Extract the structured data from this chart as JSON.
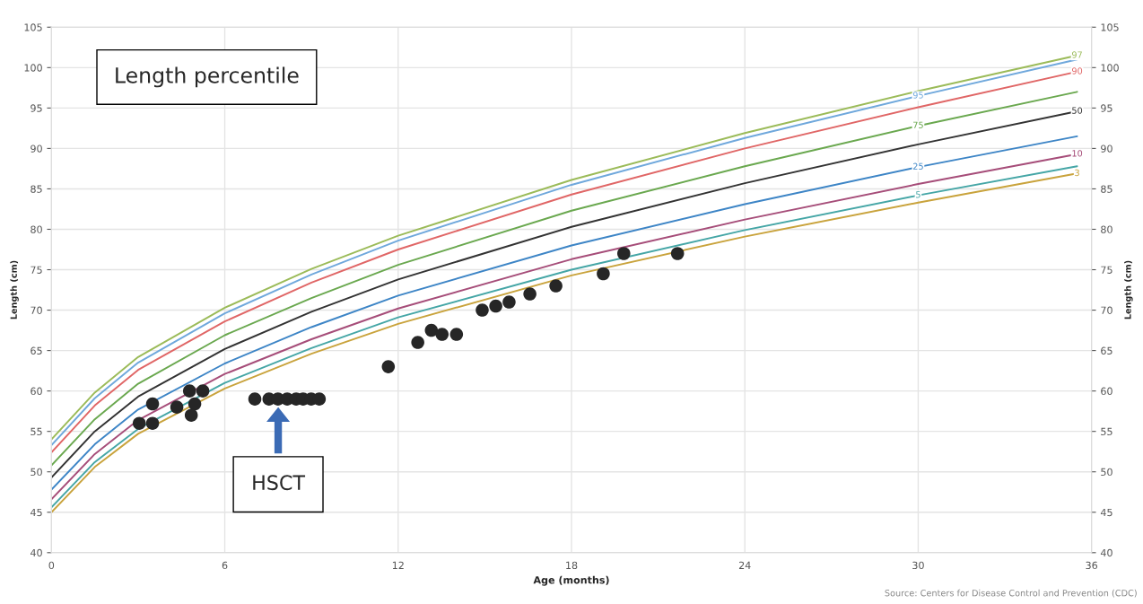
{
  "chart_data": {
    "type": "line",
    "xlabel": "Age (months)",
    "ylabel": "Length (cm)",
    "y2label": "Length (cm)",
    "xlim": [
      0,
      36
    ],
    "xticks": [
      0,
      6,
      12,
      18,
      24,
      30,
      36
    ],
    "ylim": [
      40,
      105
    ],
    "yticks": [
      40,
      45,
      50,
      55,
      60,
      65,
      70,
      75,
      80,
      85,
      90,
      95,
      100,
      105
    ],
    "y2lim": [
      40,
      105
    ],
    "y2ticks": [
      40,
      45,
      50,
      55,
      60,
      65,
      70,
      75,
      80,
      85,
      90,
      95,
      100,
      105
    ],
    "grid": true,
    "marker": "none",
    "line_style": "solid",
    "x": [
      0,
      1.5,
      3,
      6,
      9,
      12,
      18,
      24,
      30,
      35.5
    ],
    "series": [
      {
        "name": "97",
        "color": "#9bbb59",
        "values": [
          54.0,
          59.8,
          64.2,
          70.3,
          75.1,
          79.2,
          86.1,
          91.9,
          97.1,
          101.5
        ]
      },
      {
        "name": "95",
        "color": "#6fa8dc",
        "values": [
          53.3,
          59.1,
          63.5,
          69.6,
          74.4,
          78.6,
          85.5,
          91.3,
          96.5,
          101.0
        ]
      },
      {
        "name": "90",
        "color": "#e06666",
        "values": [
          52.4,
          58.2,
          62.6,
          68.6,
          73.4,
          77.5,
          84.3,
          90.0,
          95.1,
          99.5
        ]
      },
      {
        "name": "75",
        "color": "#6aa84f",
        "values": [
          50.8,
          56.5,
          60.9,
          66.9,
          71.5,
          75.6,
          82.3,
          87.8,
          92.8,
          97.0
        ]
      },
      {
        "name": "50",
        "color": "#333333",
        "values": [
          49.3,
          55.0,
          59.3,
          65.2,
          69.8,
          73.8,
          80.3,
          85.7,
          90.5,
          94.6
        ]
      },
      {
        "name": "25",
        "color": "#3d85c6",
        "values": [
          47.8,
          53.4,
          57.7,
          63.4,
          67.9,
          71.8,
          78.0,
          83.1,
          87.7,
          91.5
        ]
      },
      {
        "name": "10",
        "color": "#a64d79",
        "values": [
          46.6,
          52.2,
          56.4,
          62.1,
          66.4,
          70.2,
          76.3,
          81.2,
          85.6,
          89.3
        ]
      },
      {
        "name": "5",
        "color": "#45a6a6",
        "values": [
          45.6,
          51.2,
          55.3,
          61.0,
          65.3,
          69.1,
          75.0,
          79.9,
          84.2,
          87.8
        ]
      },
      {
        "name": "3",
        "color": "#c9a33c",
        "values": [
          45.0,
          50.6,
          54.7,
          60.3,
          64.6,
          68.3,
          74.3,
          79.1,
          83.3,
          86.9
        ]
      },
      {
        "type": "scatter",
        "marker": "circle",
        "color": "#262626",
        "x": [
          3.04,
          3.5,
          3.5,
          4.34,
          4.78,
          4.96,
          4.84,
          5.24,
          7.04,
          7.53,
          7.84,
          8.16,
          8.47,
          8.71,
          8.99,
          9.27,
          11.66,
          12.68,
          13.15,
          13.52,
          14.02,
          14.91,
          15.38,
          15.84,
          16.56,
          17.46,
          19.1,
          19.81,
          21.67
        ],
        "values": [
          56,
          56,
          58.4,
          58,
          60,
          58.4,
          57,
          60,
          59,
          59,
          59,
          59,
          59,
          59,
          59,
          59,
          63,
          66,
          67.5,
          67,
          67,
          70,
          70.5,
          71,
          72,
          73,
          74.5,
          77,
          77
        ]
      }
    ],
    "annotations": [
      "Length percentile",
      "HSCT",
      "Source: Centers for Disease Control and Prevention (CDC)"
    ]
  }
}
